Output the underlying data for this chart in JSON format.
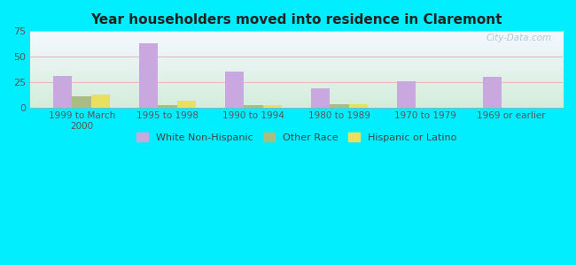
{
  "title": "Year householders moved into residence in Claremont",
  "categories": [
    "1999 to March\n2000",
    "1995 to 1998",
    "1990 to 1994",
    "1980 to 1989",
    "1970 to 1979",
    "1969 or earlier"
  ],
  "white_non_hispanic": [
    31,
    63,
    36,
    19,
    26,
    30
  ],
  "other_race": [
    11,
    3,
    3,
    4,
    0,
    0
  ],
  "hispanic_or_latino": [
    13,
    7,
    3,
    4,
    0,
    0
  ],
  "white_color": "#c9a8e0",
  "other_color": "#a8bc84",
  "hispanic_color": "#e8e060",
  "bg_outer": "#00eeff",
  "bg_plot_top": "#f5f8ff",
  "bg_plot_bottom": "#d4edda",
  "grid_color": "#e8b8c0",
  "ylim": [
    0,
    75
  ],
  "yticks": [
    0,
    25,
    50,
    75
  ],
  "bar_width": 0.22,
  "watermark": "City-Data.com"
}
